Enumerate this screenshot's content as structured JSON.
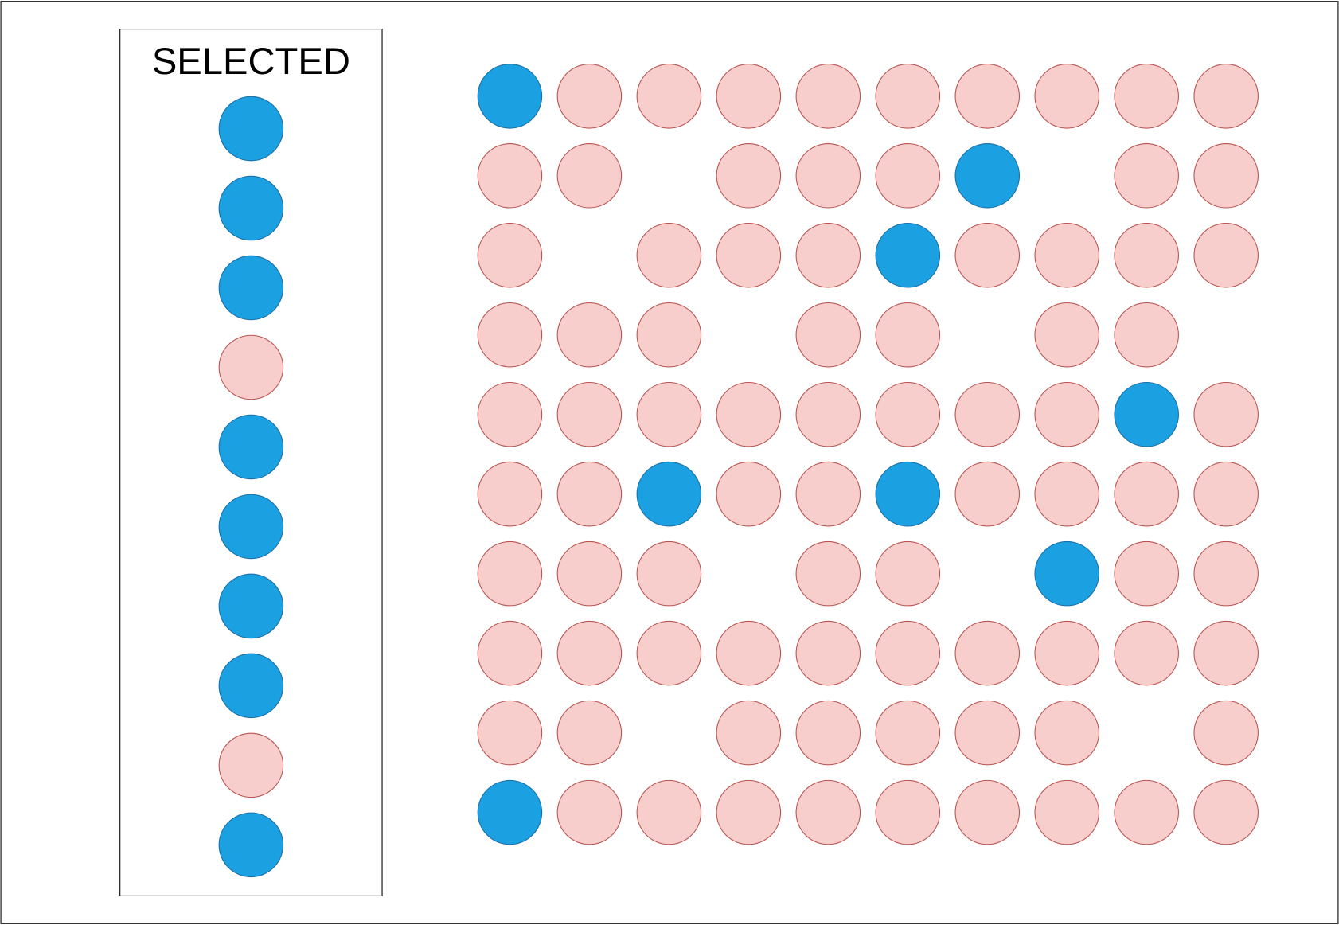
{
  "sidebar": {
    "title": "SELECTED"
  }
}
